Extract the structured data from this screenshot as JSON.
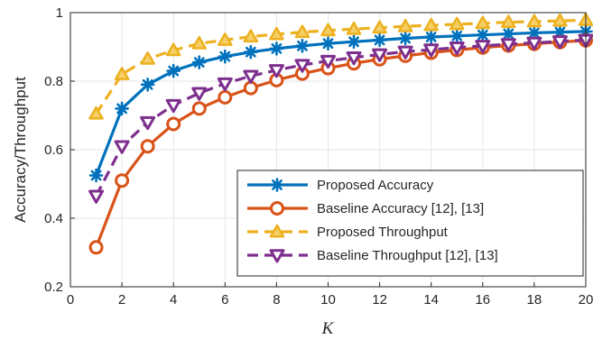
{
  "chart_data": {
    "type": "line",
    "xlabel": "K",
    "ylabel": "Accuracy/Throughput",
    "xlim": [
      0,
      20
    ],
    "ylim": [
      0.2,
      1.0
    ],
    "xticks": [
      "0",
      "2",
      "4",
      "6",
      "8",
      "10",
      "12",
      "14",
      "16",
      "18",
      "20"
    ],
    "yticks": [
      "0.2",
      "0.4",
      "0.6",
      "0.8",
      "1"
    ],
    "grid": true,
    "legend_position": "bottom-right",
    "x": [
      1,
      2,
      3,
      4,
      5,
      6,
      7,
      8,
      9,
      10,
      11,
      12,
      13,
      14,
      15,
      16,
      17,
      18,
      19,
      20
    ],
    "series": [
      {
        "name": "Proposed Accuracy",
        "color": "#0072BD",
        "line_style": "solid",
        "marker": "asterisk",
        "values": [
          0.525,
          0.72,
          0.79,
          0.83,
          0.855,
          0.872,
          0.885,
          0.895,
          0.903,
          0.91,
          0.915,
          0.92,
          0.925,
          0.929,
          0.932,
          0.935,
          0.938,
          0.941,
          0.943,
          0.945
        ]
      },
      {
        "name": "Baseline Accuracy [12], [13]",
        "color": "#D95319",
        "line_style": "solid",
        "marker": "circle",
        "values": [
          0.315,
          0.51,
          0.61,
          0.675,
          0.72,
          0.753,
          0.78,
          0.803,
          0.822,
          0.838,
          0.852,
          0.864,
          0.874,
          0.883,
          0.891,
          0.898,
          0.904,
          0.909,
          0.914,
          0.919
        ]
      },
      {
        "name": "Proposed Throughput",
        "color": "#EDB120",
        "line_style": "dashed",
        "marker": "triangle-up",
        "values": [
          0.705,
          0.82,
          0.865,
          0.89,
          0.91,
          0.92,
          0.93,
          0.937,
          0.943,
          0.948,
          0.952,
          0.956,
          0.96,
          0.963,
          0.966,
          0.969,
          0.972,
          0.974,
          0.976,
          0.978
        ]
      },
      {
        "name": "Baseline Throughput [12], [13]",
        "color": "#7E2F8E",
        "line_style": "dashed",
        "marker": "triangle-down",
        "values": [
          0.465,
          0.61,
          0.68,
          0.73,
          0.765,
          0.793,
          0.815,
          0.832,
          0.847,
          0.859,
          0.869,
          0.878,
          0.886,
          0.892,
          0.898,
          0.903,
          0.908,
          0.912,
          0.916,
          0.92
        ]
      }
    ]
  }
}
